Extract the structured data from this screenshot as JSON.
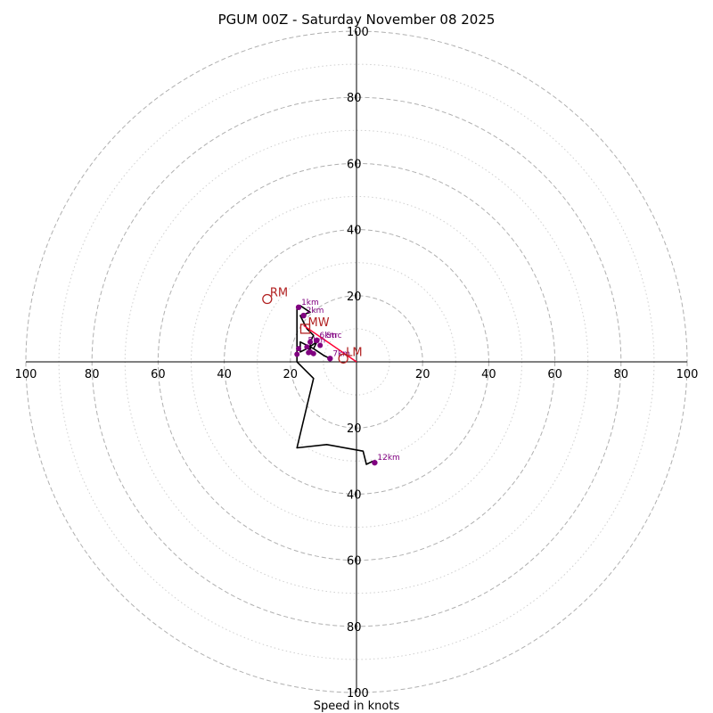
{
  "chart_data": {
    "type": "hodograph",
    "title": "PGUM 00Z - Saturday November 08 2025",
    "xlabel": "Speed in knots",
    "units": "knots",
    "range_max": 100,
    "ring_major": [
      20,
      40,
      60,
      80,
      100
    ],
    "ring_minor": [
      10,
      30,
      50,
      70,
      90
    ],
    "axis_ticks": {
      "right": [
        "20",
        "40",
        "60",
        "80",
        "100"
      ],
      "left": [
        "20",
        "40",
        "60",
        "80",
        "100"
      ],
      "up": [
        "20",
        "40",
        "60",
        "80",
        "100"
      ],
      "down": [
        "20",
        "40",
        "60",
        "80",
        "100"
      ]
    },
    "hodograph_trace": [
      [
        -8,
        1
      ],
      [
        -10,
        2
      ],
      [
        -13,
        4
      ],
      [
        -15,
        5
      ],
      [
        -17,
        6
      ],
      [
        -17,
        3
      ],
      [
        -15,
        4
      ],
      [
        -12,
        6
      ],
      [
        -13,
        4
      ],
      [
        -15,
        5
      ],
      [
        -14,
        3
      ],
      [
        -14,
        6
      ],
      [
        -13,
        8
      ],
      [
        -15,
        10
      ],
      [
        -16,
        12
      ],
      [
        -17,
        14
      ],
      [
        -14,
        15
      ],
      [
        -17,
        17
      ],
      [
        -18,
        16
      ],
      [
        -18,
        6
      ],
      [
        -18,
        2
      ],
      [
        -18,
        0
      ],
      [
        -16,
        -2
      ],
      [
        -13,
        -5
      ],
      [
        -18,
        -26
      ],
      [
        -9,
        -25
      ],
      [
        2,
        -27
      ],
      [
        3,
        -31
      ],
      [
        5,
        -30
      ]
    ],
    "height_markers": [
      {
        "label": "1km",
        "u": -17.5,
        "v": 16.5
      },
      {
        "label": "2km",
        "u": -16,
        "v": 14
      },
      {
        "label": "6km",
        "u": -12,
        "v": 6.5
      },
      {
        "label": "7km",
        "u": -8,
        "v": 1
      },
      {
        "label": "12km",
        "u": 5.5,
        "v": -30.5
      }
    ],
    "other_points": [
      {
        "u": -15,
        "v": 4.5
      },
      {
        "u": -14,
        "v": 6
      },
      {
        "u": -11,
        "v": 5
      },
      {
        "u": -13,
        "v": 2.5
      },
      {
        "u": -14,
        "v": 3
      },
      {
        "u": -17.5,
        "v": 4
      },
      {
        "u": -18,
        "v": 2.3
      },
      {
        "u": -14.5,
        "v": 2.8
      }
    ],
    "extra_labels": [
      {
        "text": "5km",
        "u": -15.5,
        "v": 5
      },
      {
        "text": "Strc",
        "u": -10,
        "v": 6.5
      }
    ],
    "storm_motion": [
      {
        "label": "RM",
        "u": -27,
        "v": 19
      },
      {
        "label": "LM",
        "u": -4,
        "v": 1
      },
      {
        "label": "MW",
        "u": -15.5,
        "v": 10
      }
    ],
    "shear_vector": {
      "from": [
        0,
        0
      ],
      "to": [
        -16,
        11
      ]
    },
    "colors": {
      "trace": "#000000",
      "markers": "#800080",
      "storm": "#b22222",
      "grid": "#b0b0b0",
      "shear": "#ff0033"
    }
  }
}
